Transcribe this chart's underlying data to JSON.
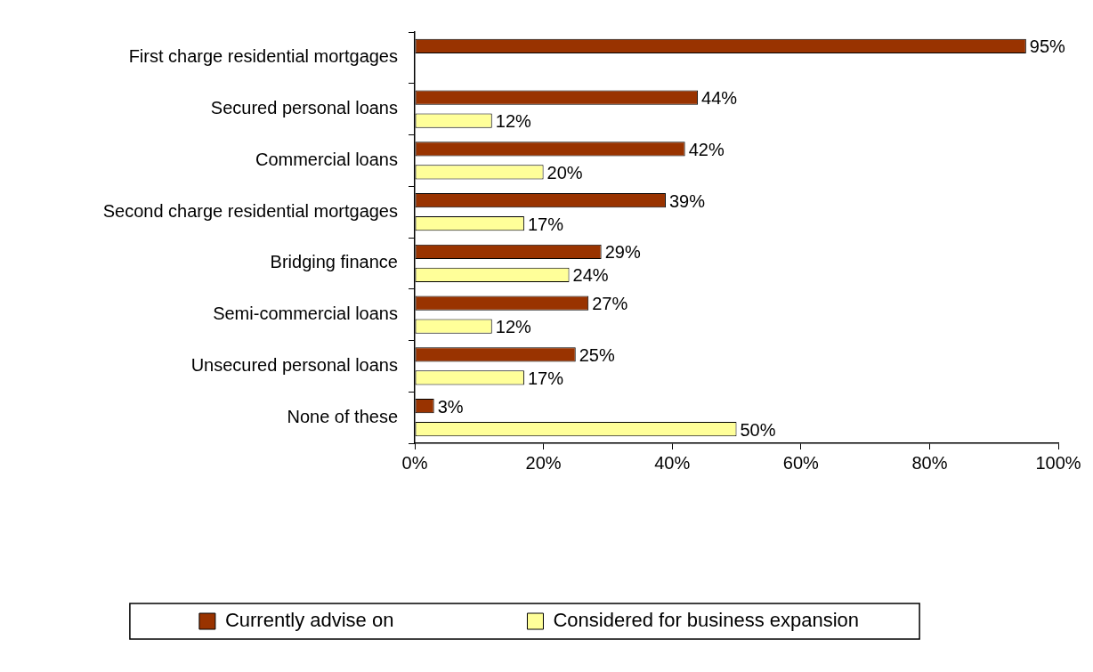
{
  "chart_data": {
    "type": "bar",
    "orientation": "horizontal",
    "categories": [
      "First charge residential mortgages",
      "Secured personal loans",
      "Commercial loans",
      "Second charge residential mortgages",
      "Bridging finance",
      "Semi-commercial loans",
      "Unsecured personal loans",
      "None of these"
    ],
    "series": [
      {
        "name": "Currently advise on",
        "color": "#993300",
        "values": [
          95,
          44,
          42,
          39,
          29,
          27,
          25,
          3
        ],
        "value_labels": [
          "95%",
          "44%",
          "42%",
          "39%",
          "29%",
          "27%",
          "25%",
          "3%"
        ]
      },
      {
        "name": "Considered for business expansion",
        "color": "#ffff99",
        "values": [
          null,
          12,
          20,
          17,
          24,
          12,
          17,
          50
        ],
        "value_labels": [
          null,
          "12%",
          "20%",
          "17%",
          "24%",
          "12%",
          "17%",
          "50%"
        ]
      }
    ],
    "xlim": [
      0,
      100
    ],
    "xticks": [
      {
        "value": 0,
        "label": "0%"
      },
      {
        "value": 20,
        "label": "20%"
      },
      {
        "value": 40,
        "label": "40%"
      },
      {
        "value": 60,
        "label": "60%"
      },
      {
        "value": 80,
        "label": "80%"
      },
      {
        "value": 100,
        "label": "100%"
      }
    ],
    "legend": "bottom"
  }
}
